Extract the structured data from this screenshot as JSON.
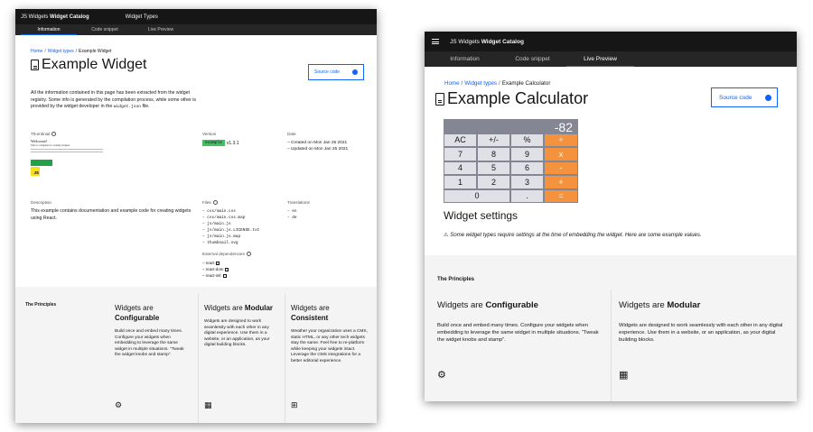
{
  "left": {
    "brand_prefix": "JS Widgets",
    "brand_name": "Widget Catalog",
    "nav_link": "Widget Types",
    "tabs": [
      "Information",
      "Code snippet",
      "Live Preview"
    ],
    "breadcrumb": {
      "home": "Home",
      "types": "Widget types",
      "current": "Example Widget",
      "sep": "/"
    },
    "title": "Example Widget",
    "source_label": "Source code",
    "intro_pre": "All the information contained in this page has been extracted from the widget registry. Some info is generated by the compilation process, while some other is provided by the widget developer in the",
    "intro_code": "widget.json",
    "intro_post": "file.",
    "thumbnail": {
      "label": "Thumbnail",
      "heading": "Welcome!",
      "line1": "This is a template for creating widgets.",
      "js": "JS"
    },
    "version": {
      "label": "Version",
      "badge": "example",
      "value": "v1.3.1"
    },
    "date": {
      "label": "Date",
      "created": "Created on Mon Jan 25 2021",
      "updated": "Updated on Mon Jan 25 2021"
    },
    "description": {
      "label": "Description",
      "text": "This example contains documentation and example code for creating widgets using React."
    },
    "files": {
      "label": "Files",
      "items": [
        "css/main.css",
        "css/main.css.map",
        "js/main.js",
        "js/main.js.LICENSE.txt",
        "js/main.js.map",
        "thumbnail.svg"
      ]
    },
    "translations": {
      "label": "Translations",
      "items": [
        "en",
        "de"
      ]
    },
    "deps": {
      "label": "External dependencies",
      "items": [
        "react",
        "react-dom",
        "react-intl"
      ]
    },
    "principles": {
      "title": "The Principles",
      "cols": [
        {
          "pre": "Widgets are",
          "bold": "Configurable",
          "text": "Build once and embed many times. Configure your widgets when embedding to leverage the same widget in multiple situations. \"Tweak the widget knobs and stamp\"."
        },
        {
          "pre": "Widgets are",
          "bold": "Modular",
          "text": "Widgets are designed to work seamlessly with each other in any digital experience. Use them in a website, or an application, as your digital building blocks."
        },
        {
          "pre": "Widgets are",
          "bold": "Consistent",
          "text": "Weather your organization uses a CMS, static HTML, or any other tech widgets stay the same. Feel free to re-platform while keeping your widgets intact. Leverage the CMS integrations for a better editorial experience."
        }
      ]
    }
  },
  "right": {
    "brand_prefix": "JS Widgets",
    "brand_name": "Widget Catalog",
    "tabs": [
      "Information",
      "Code snippet",
      "Live Preview"
    ],
    "breadcrumb": {
      "home": "Home",
      "types": "Widget types",
      "current": "Example Calculator",
      "sep": "/"
    },
    "title": "Example Calculator",
    "source_label": "Source code",
    "calc": {
      "display": "-82",
      "rows": [
        [
          "AC",
          "+/-",
          "%",
          "÷"
        ],
        [
          "7",
          "8",
          "9",
          "x"
        ],
        [
          "4",
          "5",
          "6",
          "-"
        ],
        [
          "1",
          "2",
          "3",
          "+"
        ]
      ],
      "last_row": [
        "0",
        ".",
        "="
      ]
    },
    "settings_title": "Widget settings",
    "settings_note": "Some widget types require settings at the time of embedding the widget. Here are some example values.",
    "principles": {
      "title": "The Principles",
      "cols": [
        {
          "pre": "Widgets are",
          "bold": "Configurable",
          "text": "Build once and embed many times. Configure your widgets when embedding to leverage the same widget in multiple situations. \"Tweak the widget knobs and stamp\"."
        },
        {
          "pre": "Widgets are",
          "bold": "Modular",
          "text": "Widgets are designed to work seamlessly with each other in any digital experience. Use them in a website, or an application, as your digital building blocks."
        }
      ]
    }
  },
  "colors": {
    "accent": "#0f62fe",
    "topbar": "#161616",
    "tabbar": "#262626",
    "calc_op": "#f5923e",
    "calc_display": "#858694",
    "badge": "#42be65"
  }
}
